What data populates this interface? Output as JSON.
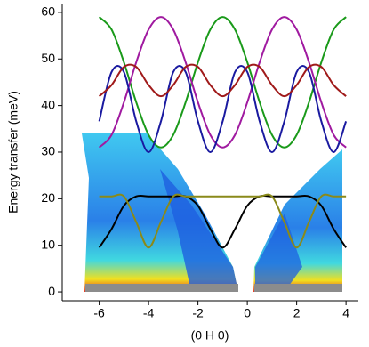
{
  "chart_data": {
    "type": "line",
    "x_label": "(0 H 0)",
    "y_label": "Energy transfer (meV)",
    "x": [
      -6,
      -5.5,
      -5,
      -4.5,
      -4,
      -3.5,
      -3,
      -2.5,
      -2,
      -1.5,
      -1,
      -0.5,
      0,
      0.5,
      1,
      1.5,
      2,
      2.5,
      3,
      3.5,
      4
    ],
    "series": [
      {
        "color": "#1a9a1a",
        "values": [
          59,
          56.3,
          49.3,
          40.7,
          33.7,
          31,
          33.7,
          40.7,
          49.3,
          56.3,
          59,
          56.3,
          49.3,
          40.7,
          33.7,
          31,
          33.7,
          40.7,
          49.3,
          56.3,
          59
        ]
      },
      {
        "color": "#a01aa0",
        "values": [
          31,
          33.7,
          40.7,
          49.3,
          56.3,
          59,
          56.3,
          49.3,
          40.7,
          33.7,
          31,
          33.7,
          40.7,
          49.3,
          56.3,
          59,
          56.3,
          49.3,
          40.7,
          33.7,
          31
        ]
      },
      {
        "color": "#1a1aa0",
        "values": [
          36.6,
          47.2,
          47.2,
          36.6,
          30,
          36.6,
          47.2,
          47.2,
          36.6,
          30,
          36.6,
          47.2,
          47.2,
          36.6,
          30,
          36.6,
          47.2,
          47.2,
          36.6,
          30,
          36.6
        ]
      },
      {
        "color": "#a01a1a",
        "values": [
          42,
          44.4,
          48.3,
          48.3,
          44.4,
          42,
          44.4,
          48.3,
          48.3,
          44.4,
          42,
          44.4,
          48.3,
          48.3,
          44.4,
          42,
          44.4,
          48.3,
          48.3,
          44.4,
          42
        ]
      },
      {
        "color": "#000000",
        "values": [
          9.5,
          13.5,
          18.5,
          20.5,
          20.5,
          20.5,
          20.5,
          20.5,
          18.5,
          13.5,
          9.5,
          13.5,
          18.5,
          20.5,
          20.5,
          20.5,
          20.5,
          20.5,
          18.5,
          13.5,
          9.5
        ]
      },
      {
        "color": "#8a8a1a",
        "values": [
          20.5,
          20.5,
          20.5,
          15,
          9.5,
          15,
          20.5,
          20.5,
          20.5,
          20.5,
          20.5,
          20.5,
          20.5,
          20.5,
          20.5,
          15,
          9.5,
          15,
          20.5,
          20.5,
          20.5
        ]
      }
    ],
    "xlim": [
      -7.5,
      4.5
    ],
    "ylim": [
      -1.9,
      61.7
    ],
    "xticks": [
      -6,
      -4,
      -2,
      0,
      2,
      4
    ],
    "yticks": [
      0,
      10,
      20,
      30,
      40,
      50,
      60
    ]
  }
}
